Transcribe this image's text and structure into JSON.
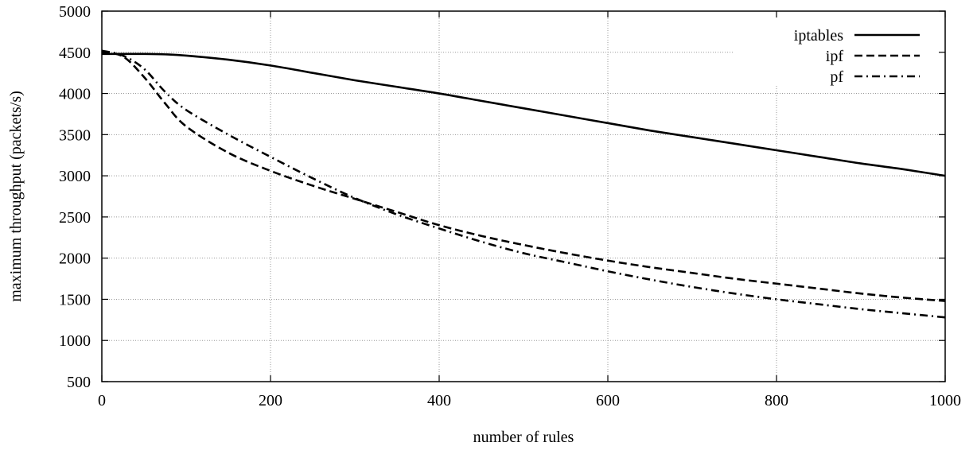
{
  "chart_data": {
    "type": "line",
    "title": "",
    "xlabel": "number of rules",
    "ylabel": "maximum throughput (packets/s)",
    "xlim": [
      0,
      1000
    ],
    "ylim": [
      500,
      5000
    ],
    "xticks": [
      0,
      200,
      400,
      600,
      800,
      1000
    ],
    "yticks": [
      500,
      1000,
      1500,
      2000,
      2500,
      3000,
      3500,
      4000,
      4500,
      5000
    ],
    "grid": true,
    "legend_position": "top-right",
    "x": [
      0,
      25,
      50,
      75,
      100,
      150,
      200,
      250,
      300,
      350,
      400,
      450,
      500,
      550,
      600,
      650,
      700,
      750,
      800,
      850,
      900,
      950,
      1000
    ],
    "series": [
      {
        "name": "iptables",
        "style": "solid",
        "values": [
          4480,
          4480,
          4480,
          4475,
          4460,
          4410,
          4340,
          4250,
          4160,
          4080,
          4000,
          3910,
          3820,
          3730,
          3640,
          3550,
          3470,
          3390,
          3310,
          3230,
          3150,
          3080,
          3000
        ]
      },
      {
        "name": "ipf",
        "style": "dashed",
        "values": [
          4500,
          4450,
          4200,
          3880,
          3600,
          3280,
          3060,
          2880,
          2720,
          2560,
          2400,
          2270,
          2160,
          2060,
          1970,
          1890,
          1820,
          1750,
          1690,
          1630,
          1570,
          1520,
          1480
        ]
      },
      {
        "name": "pf",
        "style": "dash-dot",
        "values": [
          4520,
          4460,
          4300,
          4020,
          3800,
          3500,
          3230,
          2970,
          2730,
          2530,
          2360,
          2200,
          2060,
          1950,
          1840,
          1740,
          1650,
          1570,
          1500,
          1440,
          1380,
          1330,
          1280
        ]
      }
    ]
  }
}
